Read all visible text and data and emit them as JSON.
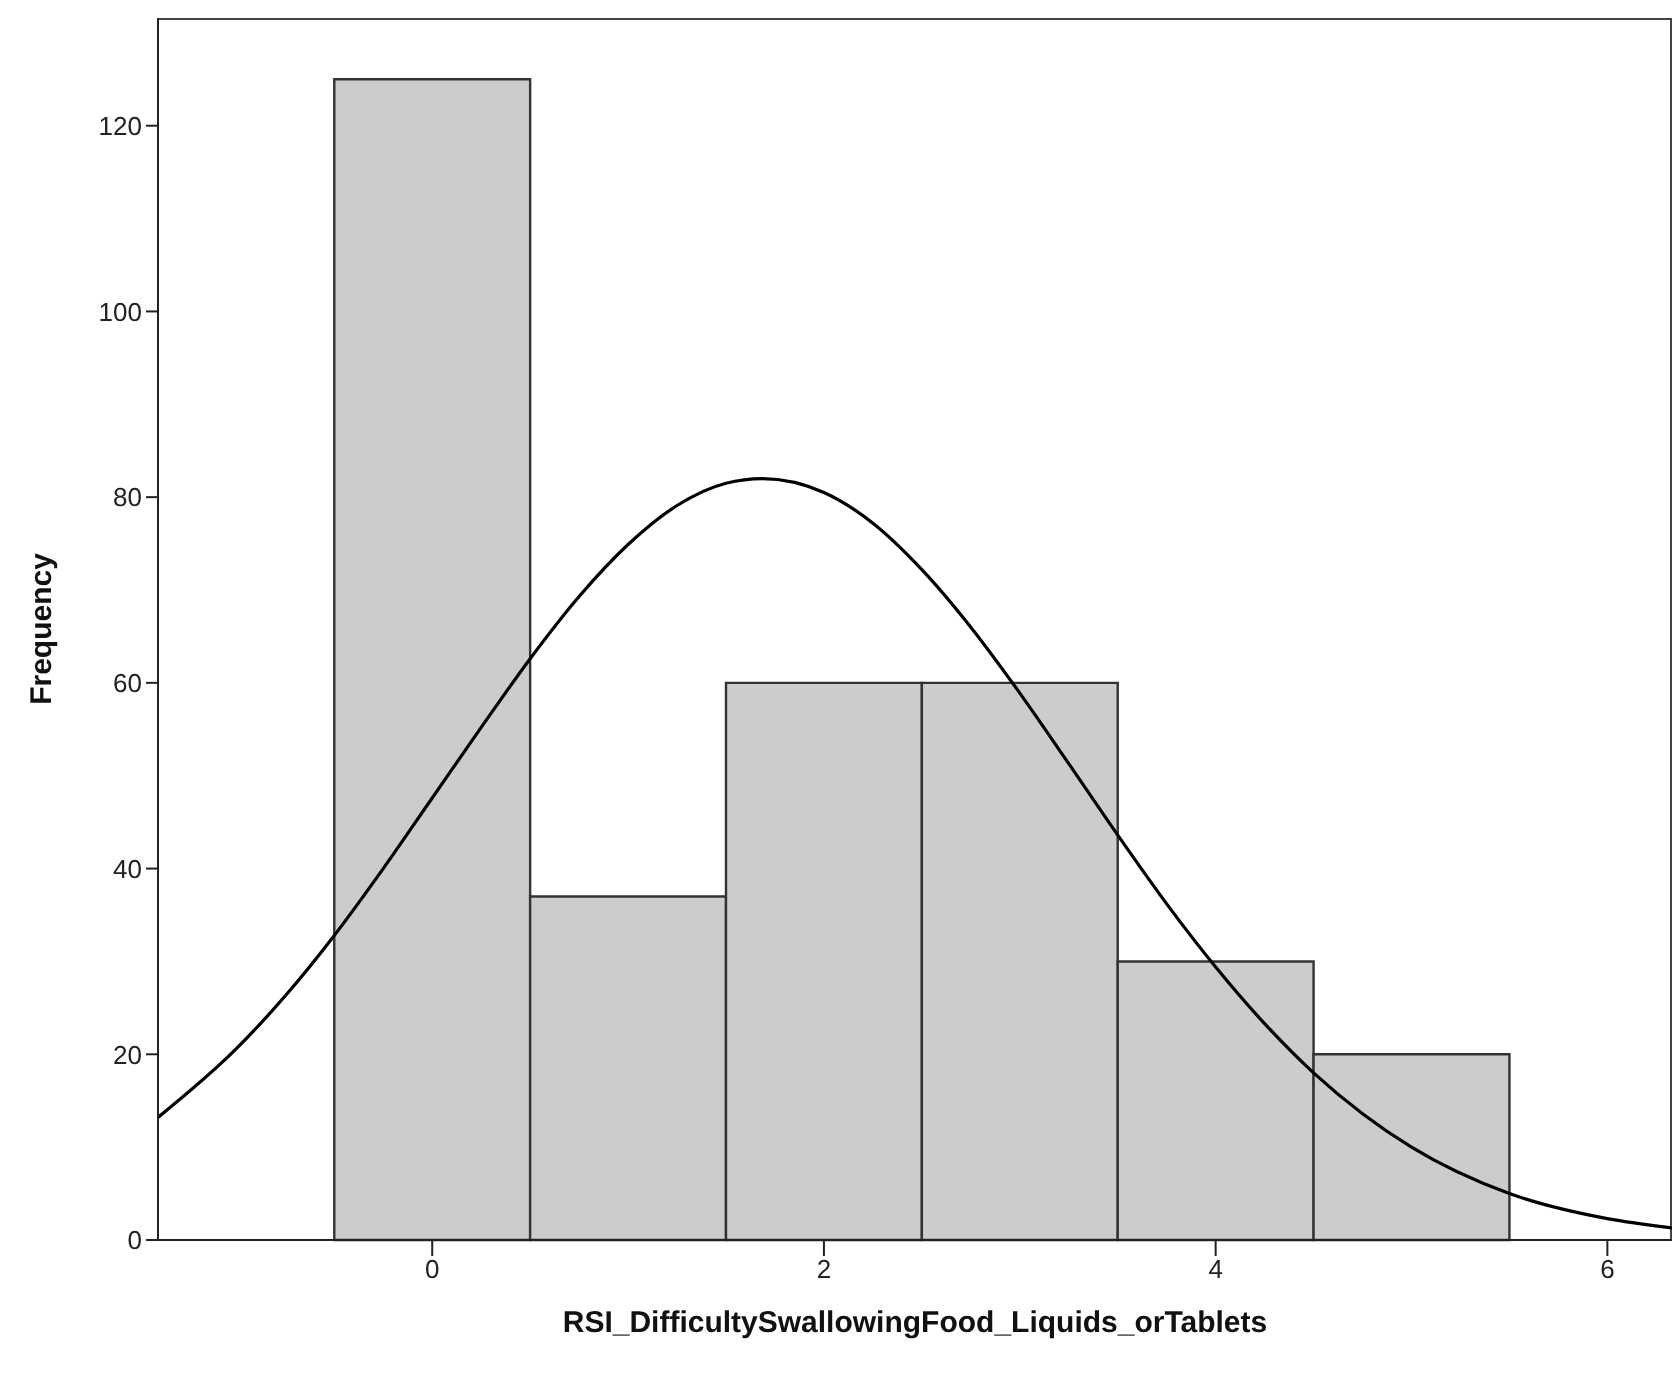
{
  "chart_data": {
    "type": "histogram",
    "xlabel": "RSI_DifficultySwallowingFood_Liquids_orTablets",
    "ylabel": "Frequency",
    "bins": [
      -0.5,
      0.5,
      1.5,
      2.5,
      3.5,
      4.5,
      5.5
    ],
    "values": [
      125,
      37,
      60,
      60,
      30,
      20
    ],
    "color": "#cccccc",
    "series": [
      {
        "type": "line",
        "color": "#000000",
        "x": [
          -1.4,
          -1,
          -0.75,
          -0.5,
          -0.25,
          0,
          0.25,
          0.5,
          0.75,
          1,
          1.25,
          1.5,
          1.686,
          2,
          2.25,
          2.5,
          2.75,
          3,
          3.25,
          3.5,
          3.75,
          4,
          4.25,
          4.5,
          4.75,
          5,
          5.5,
          6,
          6.33
        ],
        "values": [
          13.2,
          20.6,
          26.3,
          32.8,
          40,
          47.6,
          55.2,
          62.6,
          69.3,
          74.9,
          79.1,
          81.5,
          82,
          80.5,
          77.2,
          72.2,
          66,
          58.9,
          51.3,
          43.6,
          36.2,
          29.4,
          23.3,
          18,
          13.6,
          10,
          5,
          2.3,
          1.3
        ]
      }
    ],
    "xlim": [
      -1.4,
      6.33
    ],
    "ylim": [
      0,
      131.6
    ],
    "xticks": [
      0,
      2,
      4,
      6
    ],
    "yticks": [
      0,
      20,
      40,
      60,
      80,
      100,
      120
    ]
  }
}
